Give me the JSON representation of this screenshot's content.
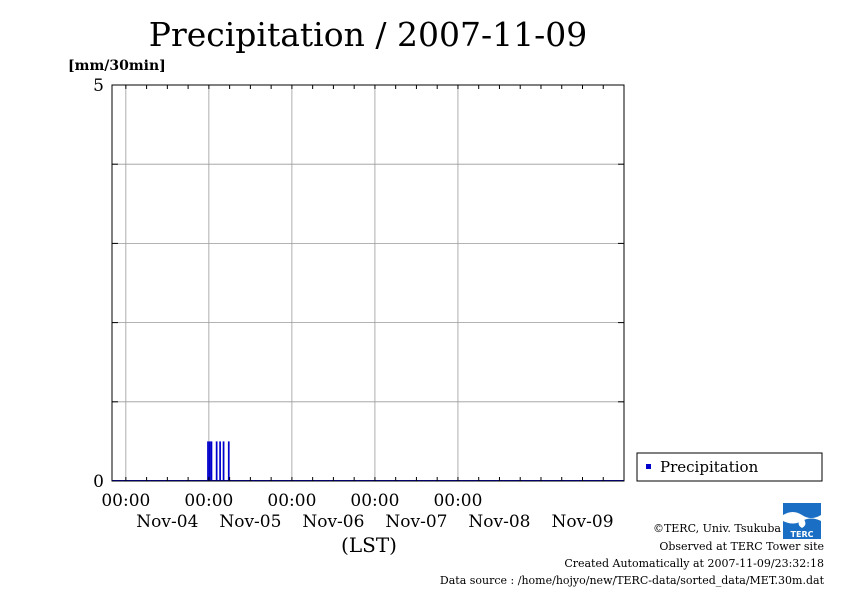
{
  "chart_data": {
    "type": "bar",
    "title": "Precipitation / 2007-11-09",
    "ylabel": "[mm/30min]",
    "xlabel": "(LST)",
    "ylim": [
      0,
      5
    ],
    "y_ticks": [
      "0",
      "5"
    ],
    "x_range": [
      "2007-11-03 20:00",
      "2007-11-09 24:00"
    ],
    "x_ticks": [
      {
        "time": "2007-11-04 00:00",
        "label": "00:00"
      },
      {
        "time": "2007-11-05 00:00",
        "label": "00:00"
      },
      {
        "time": "2007-11-06 00:00",
        "label": "00:00"
      },
      {
        "time": "2007-11-07 00:00",
        "label": "00:00"
      },
      {
        "time": "2007-11-08 00:00",
        "label": "00:00"
      }
    ],
    "date_labels": [
      {
        "time": "2007-11-04 12:00",
        "label": "Nov-04"
      },
      {
        "time": "2007-11-05 12:00",
        "label": "Nov-05"
      },
      {
        "time": "2007-11-06 12:00",
        "label": "Nov-06"
      },
      {
        "time": "2007-11-07 12:00",
        "label": "Nov-07"
      },
      {
        "time": "2007-11-08 12:00",
        "label": "Nov-08"
      },
      {
        "time": "2007-11-09 12:00",
        "label": "Nov-09"
      }
    ],
    "grid": true,
    "legend_position": "right",
    "series": [
      {
        "name": "Precipitation",
        "color": "#0000cc",
        "points": [
          {
            "time": "2007-11-04 23:30",
            "value": 0.5
          },
          {
            "time": "2007-11-05 00:00",
            "value": 0.5
          },
          {
            "time": "2007-11-05 00:30",
            "value": 0.5
          },
          {
            "time": "2007-11-05 02:00",
            "value": 0.5
          },
          {
            "time": "2007-11-05 03:00",
            "value": 0.5
          },
          {
            "time": "2007-11-05 04:00",
            "value": 0.5
          },
          {
            "time": "2007-11-05 05:30",
            "value": 0.5
          }
        ]
      }
    ]
  },
  "credits": {
    "copyright": "©TERC, Univ. Tsukuba",
    "site": "Observed at TERC Tower site",
    "created": "Created Automatically at 2007-11-09/23:32:18",
    "source": "Data source : /home/hojyo/new/TERC-data/sorted_data/MET.30m.dat",
    "logo_icon": "terc-logo-icon",
    "logo_text": "TERC"
  }
}
